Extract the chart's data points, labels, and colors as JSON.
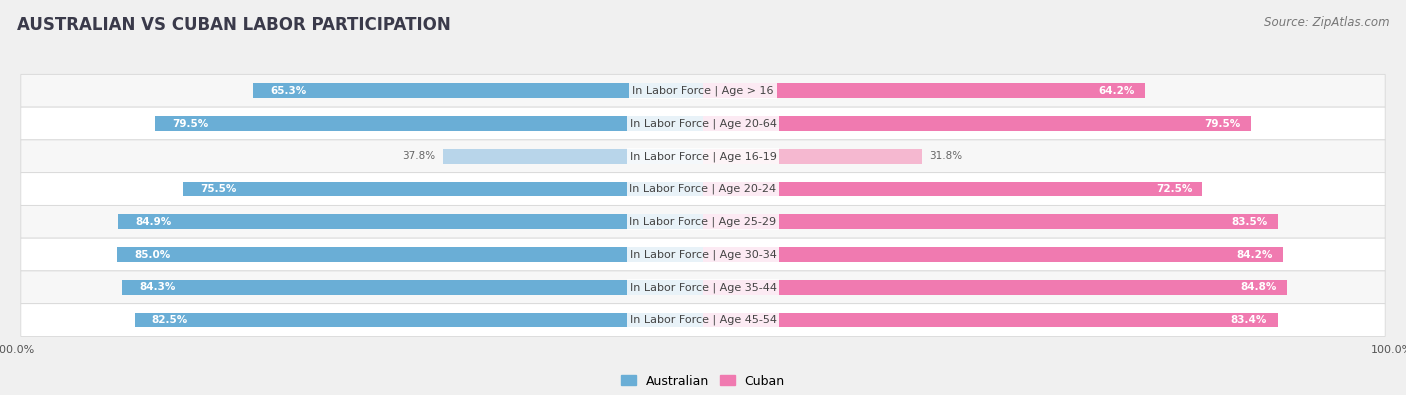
{
  "title": "AUSTRALIAN VS CUBAN LABOR PARTICIPATION",
  "source": "Source: ZipAtlas.com",
  "categories": [
    "In Labor Force | Age > 16",
    "In Labor Force | Age 20-64",
    "In Labor Force | Age 16-19",
    "In Labor Force | Age 20-24",
    "In Labor Force | Age 25-29",
    "In Labor Force | Age 30-34",
    "In Labor Force | Age 35-44",
    "In Labor Force | Age 45-54"
  ],
  "australian_values": [
    65.3,
    79.5,
    37.8,
    75.5,
    84.9,
    85.0,
    84.3,
    82.5
  ],
  "cuban_values": [
    64.2,
    79.5,
    31.8,
    72.5,
    83.5,
    84.2,
    84.8,
    83.4
  ],
  "australian_color": "#6aaed6",
  "cuban_color": "#f07ab0",
  "australian_color_light": "#b8d5ea",
  "cuban_color_light": "#f5b8d0",
  "row_bg_even": "#f7f7f7",
  "row_bg_odd": "#ffffff",
  "row_border": "#d8d8d8",
  "bg_color": "#f0f0f0",
  "title_color": "#3a3a4a",
  "source_color": "#777777",
  "label_color": "#444444",
  "value_color_white": "#ffffff",
  "value_color_dark": "#666666",
  "max_value": 100.0,
  "title_fontsize": 12,
  "label_fontsize": 8.0,
  "value_fontsize": 7.5,
  "legend_fontsize": 9,
  "axis_label_fontsize": 8
}
